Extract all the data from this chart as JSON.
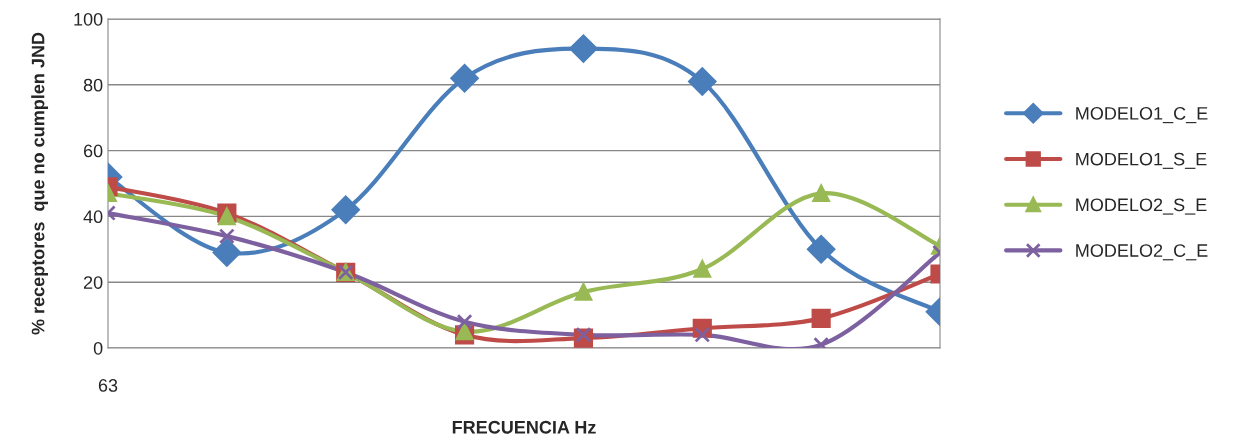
{
  "chart_data": {
    "type": "line",
    "xlabel": "FRECUENCIA Hz",
    "ylabel": "% receptores  que no cumplen JND",
    "categories": [
      "63",
      null,
      null,
      null,
      null,
      null,
      null,
      null
    ],
    "series": [
      {
        "name": "MODELO1_C_E",
        "color": "#4a7ebb",
        "marker": "diamond",
        "values": [
          52,
          29,
          42,
          82,
          91,
          81,
          30,
          11
        ]
      },
      {
        "name": "MODELO1_S_E",
        "color": "#be4b48",
        "marker": "square",
        "values": [
          49,
          41,
          23,
          4,
          3,
          6,
          9,
          22.5
        ]
      },
      {
        "name": "MODELO2_S_E",
        "color": "#98b954",
        "marker": "triangle",
        "values": [
          47,
          40,
          23,
          5,
          17,
          24,
          47,
          31
        ]
      },
      {
        "name": "MODELO2_C_E",
        "color": "#7d60a0",
        "marker": "cross",
        "values": [
          41,
          34,
          23,
          8,
          4,
          4,
          1,
          29
        ]
      }
    ],
    "ylim": [
      0,
      100
    ],
    "yticks": [
      0,
      20,
      40,
      60,
      80,
      100
    ],
    "grid": "y",
    "legend": "right",
    "line_style": "solid"
  }
}
